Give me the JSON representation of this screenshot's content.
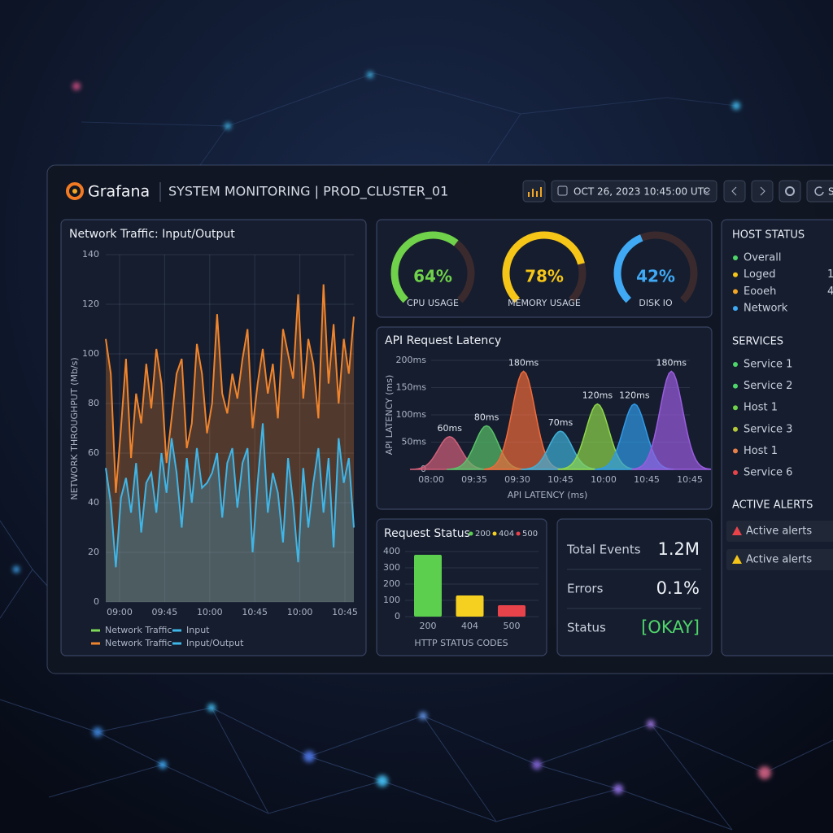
{
  "header": {
    "logo": "Grafana",
    "title": "SYSTEM MONITORING | PROD_CLUSTER_01",
    "time_range": "OCT 26, 2023 10:45:00 UTC",
    "refresh": "S"
  },
  "chart_data": [
    {
      "type": "line",
      "title": "Network Traffic: Input/Output",
      "y_label": "NETWORK THROUGHPUT (Mb/s)",
      "ylim": [
        0,
        140
      ],
      "yticks": [
        0,
        20,
        40,
        60,
        80,
        100,
        120,
        140
      ],
      "grid": true,
      "x_labels": [
        "09:00",
        "09:45",
        "10:00",
        "10:45",
        "10:00",
        "10:45"
      ],
      "series": [
        {
          "color": "#f0842c",
          "values": [
            106,
            92,
            44,
            70,
            98,
            58,
            84,
            72,
            96,
            78,
            102,
            88,
            56,
            74,
            92,
            98,
            62,
            72,
            104,
            92,
            68,
            80,
            116,
            84,
            76,
            92,
            82,
            98,
            110,
            70,
            88,
            102,
            84,
            96,
            74,
            110,
            100,
            90,
            124,
            82,
            106,
            96,
            74,
            128,
            88,
            112,
            80,
            106,
            92,
            115
          ]
        },
        {
          "color": "#3fb6e8",
          "values": [
            54,
            40,
            14,
            42,
            50,
            36,
            56,
            28,
            48,
            52,
            36,
            60,
            44,
            66,
            52,
            30,
            58,
            40,
            62,
            46,
            48,
            52,
            60,
            34,
            56,
            62,
            38,
            56,
            62,
            20,
            48,
            72,
            36,
            52,
            44,
            24,
            58,
            40,
            16,
            54,
            30,
            48,
            62,
            36,
            58,
            22,
            66,
            48,
            58,
            30
          ]
        }
      ],
      "legend": [
        {
          "name": "Network Traffic",
          "color": "#7ed957"
        },
        {
          "name": "Input",
          "color": "#3fb6e8"
        },
        {
          "name": "Network Traffic",
          "color": "#f0842c"
        },
        {
          "name": "Input/Output",
          "color": "#3fb6e8"
        }
      ]
    },
    {
      "type": "gauge",
      "categories": [
        "CPU USAGE",
        "MEMORY USAGE",
        "DISK IO"
      ],
      "values": [
        64,
        78,
        42
      ],
      "value_labels": [
        "64%",
        "78%",
        "42%"
      ],
      "ylim": [
        0,
        100
      ],
      "colors": [
        "#6fd24a",
        "#f5c518",
        "#3fa9f5"
      ]
    },
    {
      "type": "area",
      "title": "API Request Latency",
      "y_label": "API LATENCY (ms)",
      "x_label": "API LATENCY (ms)",
      "ylim": [
        0,
        200
      ],
      "yticks": [
        0,
        {
          "value": 50,
          "label": "50ms"
        },
        {
          "value": 100,
          "label": "100ms"
        },
        {
          "value": 150,
          "label": "150ms"
        },
        {
          "value": 200,
          "label": "200ms"
        }
      ],
      "x_labels": [
        "08:00",
        "09:35",
        "09:30",
        "10:45",
        "10:00",
        "10:45",
        "10:45"
      ],
      "values": [
        60,
        80,
        180,
        70,
        120,
        120,
        180
      ],
      "value_labels": [
        "60ms",
        "80ms",
        "180ms",
        "70ms",
        "120ms",
        "120ms",
        "180ms"
      ],
      "colors": [
        "#d0607a",
        "#58c268",
        "#f06a3a",
        "#3fb0d8",
        "#8fd84a",
        "#2f9ae8",
        "#9a5ce0"
      ]
    },
    {
      "type": "bar",
      "title": "Request Status",
      "categories": [
        "200",
        "404",
        "500"
      ],
      "values": [
        380,
        130,
        70
      ],
      "colors": [
        "#5ccf4e",
        "#f5d020",
        "#e8434a"
      ],
      "ylim": [
        0,
        400
      ],
      "yticks": [
        0,
        100,
        200,
        300,
        400
      ],
      "x_label": "HTTP STATUS CODES"
    }
  ],
  "stats": [
    {
      "label": "Total Events",
      "value": "1.2M"
    },
    {
      "label": "Errors",
      "value": "0.1%"
    },
    {
      "label": "Status",
      "value": "[OKAY]",
      "color": "#4fd66a"
    }
  ],
  "host_status": {
    "title": "HOST STATUS",
    "items": [
      {
        "label": "Overall",
        "color": "#4fd66a"
      },
      {
        "label": "Loged",
        "value": 1,
        "color": "#f5c518"
      },
      {
        "label": "Eooeh",
        "value": 4,
        "color": "#f5a623"
      },
      {
        "label": "Network",
        "color": "#3fa9f5"
      }
    ]
  },
  "services": {
    "title": "SERVICES",
    "items": [
      {
        "label": "Service 1",
        "color": "#4fd66a"
      },
      {
        "label": "Service 2",
        "color": "#4fd66a"
      },
      {
        "label": "Host 1",
        "color": "#6fd24a"
      },
      {
        "label": "Service 3",
        "color": "#b5c83a"
      },
      {
        "label": "Host 1",
        "color": "#e8804a"
      },
      {
        "label": "Service 6",
        "color": "#e8434a"
      }
    ]
  },
  "alerts": {
    "title": "ACTIVE ALERTS",
    "items": [
      {
        "label": "Active alerts",
        "color": "#e8434a"
      },
      {
        "label": "Active alerts",
        "color": "#f5c518"
      }
    ]
  }
}
